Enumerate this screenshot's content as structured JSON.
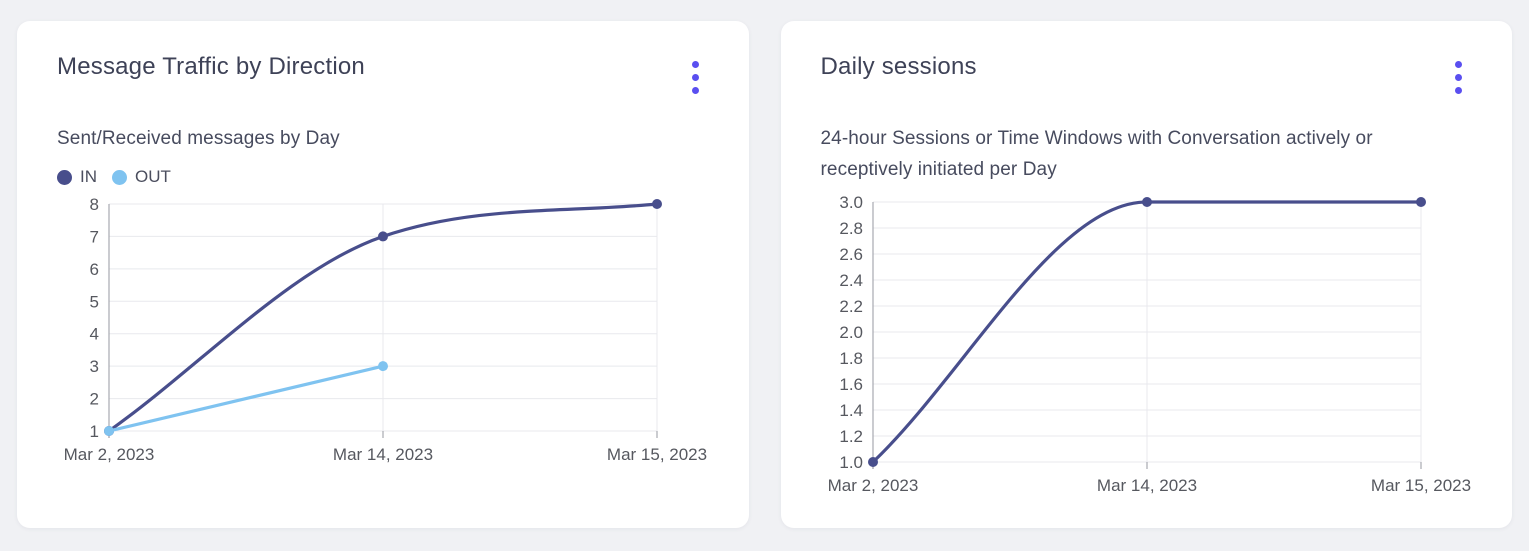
{
  "accent_color": "#5a4ff0",
  "cards": [
    {
      "title": "Message Traffic by Direction",
      "subtitle": "Sent/Received messages by Day",
      "menu_icon": "kebab-menu-icon"
    },
    {
      "title": "Daily sessions",
      "subtitle": "24-hour Sessions or Time Windows with Conversation actively or receptively initiated per Day",
      "menu_icon": "kebab-menu-icon"
    }
  ],
  "chart_data": [
    {
      "type": "line",
      "title": "Message Traffic by Direction",
      "categories": [
        "Mar 2, 2023",
        "Mar 14, 2023",
        "Mar 15, 2023"
      ],
      "series": [
        {
          "name": "IN",
          "color": "#484e8c",
          "values": [
            1,
            7,
            8
          ]
        },
        {
          "name": "OUT",
          "color": "#7fc3f0",
          "values": [
            1,
            3,
            null
          ]
        }
      ],
      "ylim": [
        1,
        8
      ],
      "yticks": [
        "1",
        "2",
        "3",
        "4",
        "5",
        "6",
        "7",
        "8"
      ],
      "xlabel": "",
      "ylabel": "",
      "grid": true,
      "curve": "monotone",
      "legend_position": "top-left"
    },
    {
      "type": "line",
      "title": "Daily sessions",
      "categories": [
        "Mar 2, 2023",
        "Mar 14, 2023",
        "Mar 15, 2023"
      ],
      "series": [
        {
          "name": "Daily sessions",
          "color": "#484e8c",
          "values": [
            1.0,
            3.0,
            3.0
          ]
        }
      ],
      "ylim": [
        1.0,
        3.0
      ],
      "yticks": [
        "1.0",
        "1.2",
        "1.4",
        "1.6",
        "1.8",
        "2.0",
        "2.2",
        "2.4",
        "2.6",
        "2.8",
        "3.0"
      ],
      "xlabel": "",
      "ylabel": "",
      "grid": true,
      "curve": "monotone",
      "legend_position": "none"
    }
  ]
}
